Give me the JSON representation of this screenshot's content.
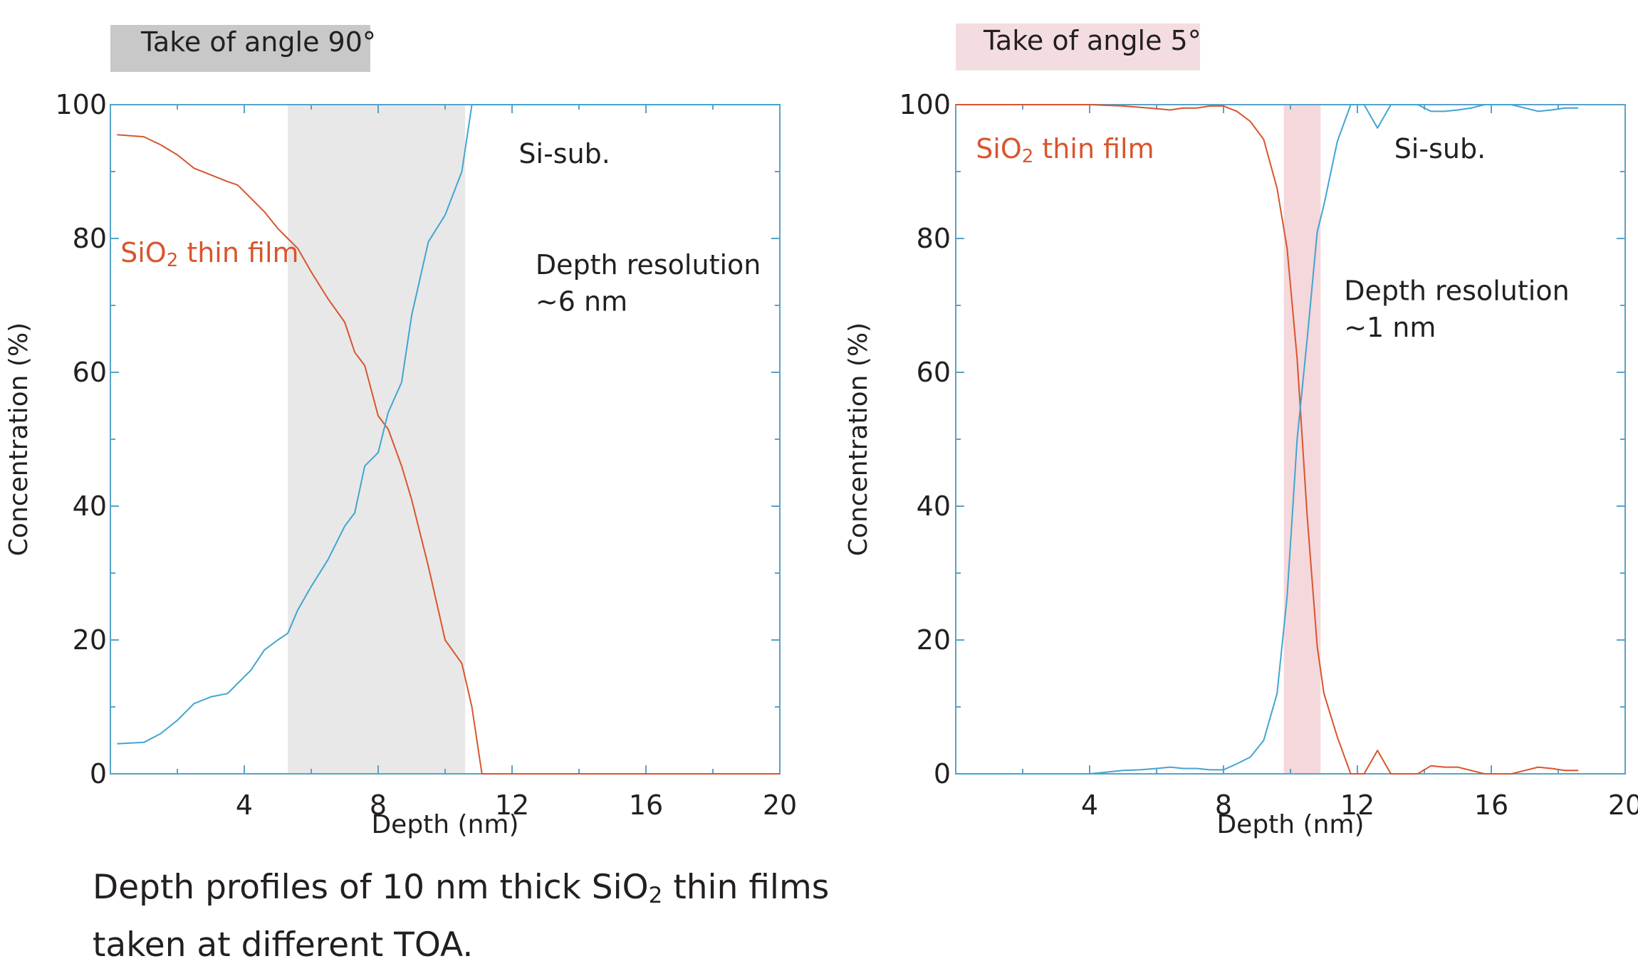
{
  "caption": {
    "line1_before": "Depth profiles of 10 nm thick SiO",
    "line1_sub": "2",
    "line1_after": " thin films",
    "line2": "taken at different TOA."
  },
  "colors": {
    "sio2": "#d9552d",
    "si": "#42a5d0",
    "axis": "#5aa2c8",
    "text": "#231f20",
    "band_left": "#e8e8e8",
    "band_right": "#f4d8dc",
    "title_left_bg": "#c8c8c8",
    "title_right_bg": "#f4dde0"
  },
  "chart_data": [
    {
      "type": "line",
      "title": "Take of angle 90°",
      "xlabel": "Depth (nm)",
      "ylabel": "Concentration (%)",
      "xlim": [
        0,
        20
      ],
      "ylim": [
        0,
        100
      ],
      "xticks": [
        4,
        8,
        12,
        16,
        20
      ],
      "yticks": [
        0,
        20,
        40,
        60,
        80,
        100
      ],
      "grid": false,
      "shaded_band": {
        "x0": 5.3,
        "x1": 10.6
      },
      "annotations": [
        {
          "id": "sio2",
          "text_main": "SiO",
          "text_sub": "2",
          "text_after": " thin film",
          "x": 0.3,
          "y": 76.5,
          "color_key": "sio2"
        },
        {
          "id": "si-sub",
          "text_main": "Si-sub.",
          "x": 12.2,
          "y": 91.3,
          "color_key": "text"
        },
        {
          "id": "res-1",
          "text_main": "Depth resolution",
          "x": 12.7,
          "y": 74.7,
          "color_key": "text"
        },
        {
          "id": "res-2",
          "text_main": "~6 nm",
          "x": 12.7,
          "y": 69.2,
          "color_key": "text"
        }
      ],
      "series": [
        {
          "name": "SiO2 thin film",
          "color_key": "sio2",
          "x": [
            0.2,
            1.0,
            1.5,
            2.0,
            2.5,
            3.0,
            3.5,
            3.8,
            4.2,
            4.6,
            5.0,
            5.3,
            5.6,
            6.0,
            6.5,
            7.0,
            7.3,
            7.6,
            8.0,
            8.3,
            8.7,
            9.0,
            9.5,
            10.0,
            10.5,
            10.8,
            11.1,
            11.4,
            11.7,
            12.0,
            13.0,
            14.0,
            15.0,
            16.0,
            17.0,
            18.0,
            19.0,
            20.0
          ],
          "y": [
            95.5,
            95.2,
            94.0,
            92.5,
            90.5,
            89.5,
            88.5,
            88.0,
            86.0,
            84.0,
            81.5,
            80.0,
            78.5,
            75.0,
            71.0,
            67.5,
            63.0,
            61.0,
            53.5,
            51.5,
            46.0,
            41.0,
            31.0,
            20.0,
            16.5,
            10.0,
            0.0,
            0.0,
            0.0,
            0.0,
            0.0,
            0.0,
            0.0,
            0.0,
            0.0,
            0.0,
            0.0,
            0.0
          ]
        },
        {
          "name": "Si-sub.",
          "color_key": "si",
          "x": [
            0.2,
            1.0,
            1.5,
            2.0,
            2.5,
            3.0,
            3.5,
            3.8,
            4.2,
            4.6,
            5.0,
            5.3,
            5.6,
            6.0,
            6.5,
            7.0,
            7.3,
            7.6,
            8.0,
            8.3,
            8.7,
            9.0,
            9.5,
            10.0,
            10.5,
            10.8,
            11.1,
            11.4,
            11.7,
            12.0,
            13.0,
            14.0,
            15.0,
            16.0,
            17.0,
            18.0,
            19.0,
            20.0
          ],
          "y": [
            4.5,
            4.7,
            6.0,
            8.0,
            10.5,
            11.5,
            12.0,
            13.5,
            15.5,
            18.5,
            20.0,
            21.0,
            24.5,
            28.0,
            32.0,
            37.0,
            39.0,
            46.0,
            48.0,
            54.0,
            58.5,
            68.5,
            79.5,
            83.5,
            90.0,
            100.0,
            100.0,
            100.0,
            100.0,
            100.0,
            100.0,
            100.0,
            100.0,
            100.0,
            100.0,
            100.0,
            100.0,
            100.0
          ]
        }
      ]
    },
    {
      "type": "line",
      "title": "Take of angle 5°",
      "xlabel": "Depth (nm)",
      "ylabel": "Concentration (%)",
      "xlim": [
        0,
        20
      ],
      "ylim": [
        0,
        100
      ],
      "xticks": [
        4,
        8,
        12,
        16,
        20
      ],
      "yticks": [
        0,
        20,
        40,
        60,
        80,
        100
      ],
      "grid": false,
      "shaded_band": {
        "x0": 9.8,
        "x1": 10.9
      },
      "annotations": [
        {
          "id": "sio2",
          "text_main": "SiO",
          "text_sub": "2",
          "text_after": " thin film",
          "x": 0.6,
          "y": 92.0,
          "color_key": "sio2"
        },
        {
          "id": "si-sub",
          "text_main": "Si-sub.",
          "x": 13.1,
          "y": 92.0,
          "color_key": "text"
        },
        {
          "id": "res-1",
          "text_main": "Depth resolution",
          "x": 11.6,
          "y": 70.8,
          "color_key": "text"
        },
        {
          "id": "res-2",
          "text_main": "~1 nm",
          "x": 11.6,
          "y": 65.3,
          "color_key": "text"
        }
      ],
      "series": [
        {
          "name": "SiO2 thin film",
          "color_key": "sio2",
          "x": [
            0.0,
            1.0,
            2.0,
            3.0,
            4.0,
            5.0,
            5.5,
            6.0,
            6.4,
            6.8,
            7.2,
            7.6,
            8.0,
            8.4,
            8.8,
            9.2,
            9.6,
            9.9,
            10.2,
            10.5,
            10.8,
            11.0,
            11.4,
            11.8,
            12.2,
            12.6,
            13.0,
            13.4,
            13.8,
            14.2,
            14.6,
            15.0,
            15.4,
            15.8,
            16.2,
            16.6,
            17.0,
            17.4,
            17.8,
            18.2,
            18.6
          ],
          "y": [
            100,
            100,
            100,
            100,
            100,
            99.8,
            99.6,
            99.4,
            99.2,
            99.5,
            99.5,
            99.8,
            99.8,
            99.0,
            97.5,
            94.8,
            87.5,
            78.5,
            62.0,
            38.5,
            19.0,
            12.0,
            5.5,
            0.0,
            0.0,
            3.5,
            0.0,
            0.0,
            0.0,
            1.2,
            1.0,
            1.0,
            0.5,
            0.0,
            0.0,
            0.0,
            0.5,
            1.0,
            0.8,
            0.5,
            0.5
          ]
        },
        {
          "name": "Si-sub.",
          "color_key": "si",
          "x": [
            0.0,
            1.0,
            2.0,
            3.0,
            4.0,
            5.0,
            5.5,
            6.0,
            6.4,
            6.8,
            7.2,
            7.6,
            8.0,
            8.4,
            8.8,
            9.2,
            9.6,
            9.9,
            10.2,
            10.5,
            10.8,
            11.0,
            11.4,
            11.8,
            12.2,
            12.6,
            13.0,
            13.4,
            13.8,
            14.2,
            14.6,
            15.0,
            15.4,
            15.8,
            16.2,
            16.6,
            17.0,
            17.4,
            17.8,
            18.2,
            18.6
          ],
          "y": [
            0,
            0,
            0,
            0,
            0,
            0.5,
            0.6,
            0.8,
            1.0,
            0.8,
            0.8,
            0.6,
            0.6,
            1.5,
            2.5,
            5.0,
            12.0,
            26.5,
            50.0,
            65.0,
            81.0,
            85.0,
            94.5,
            100,
            100,
            96.5,
            100,
            100,
            100,
            99.0,
            99.0,
            99.2,
            99.5,
            100,
            100,
            100,
            99.5,
            99.0,
            99.2,
            99.5,
            99.5
          ]
        }
      ]
    }
  ]
}
